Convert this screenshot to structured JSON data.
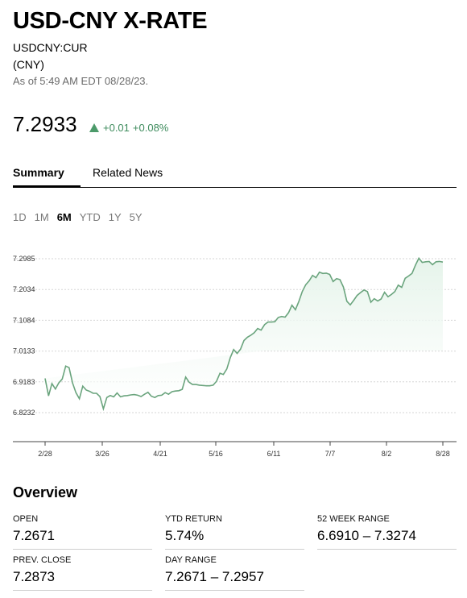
{
  "header": {
    "title": "USD-CNY X-RATE",
    "ticker": "USDCNY:CUR",
    "currency": "(CNY)",
    "as_of": "As of 5:49 AM EDT 08/28/23."
  },
  "quote": {
    "price": "7.2933",
    "change": "+0.01",
    "change_pct": "+0.08%",
    "up_color": "#4c9a6a"
  },
  "tabs": [
    {
      "label": "Summary",
      "active": true
    },
    {
      "label": "Related News",
      "active": false
    }
  ],
  "ranges": [
    {
      "label": "1D",
      "active": false
    },
    {
      "label": "1M",
      "active": false
    },
    {
      "label": "6M",
      "active": true
    },
    {
      "label": "YTD",
      "active": false
    },
    {
      "label": "1Y",
      "active": false
    },
    {
      "label": "5Y",
      "active": false
    }
  ],
  "chart_data": {
    "type": "area",
    "y_ticks": [
      "7.2985",
      "7.2034",
      "7.1084",
      "7.0133",
      "6.9183",
      "6.8232"
    ],
    "x_ticks": [
      "2/28",
      "3/26",
      "4/21",
      "5/16",
      "6/11",
      "7/7",
      "8/2",
      "8/28"
    ],
    "ylim": [
      6.8232,
      7.2985
    ],
    "grid": true,
    "line_color": "#6aa47d",
    "values": [
      6.929,
      6.875,
      6.913,
      6.896,
      6.915,
      6.927,
      6.967,
      6.962,
      6.915,
      6.885,
      6.866,
      6.905,
      6.893,
      6.889,
      6.883,
      6.883,
      6.873,
      6.835,
      6.87,
      6.876,
      6.872,
      6.884,
      6.872,
      6.875,
      6.876,
      6.878,
      6.879,
      6.877,
      6.873,
      6.88,
      6.886,
      6.874,
      6.87,
      6.876,
      6.877,
      6.885,
      6.88,
      6.888,
      6.89,
      6.891,
      6.895,
      6.933,
      6.917,
      6.91,
      6.91,
      6.908,
      6.907,
      6.906,
      6.906,
      6.908,
      6.92,
      6.945,
      6.941,
      6.958,
      6.993,
      7.018,
      7.006,
      7.019,
      7.046,
      7.056,
      7.062,
      7.07,
      7.083,
      7.078,
      7.095,
      7.103,
      7.103,
      7.104,
      7.117,
      7.12,
      7.118,
      7.132,
      7.155,
      7.141,
      7.166,
      7.197,
      7.218,
      7.23,
      7.247,
      7.24,
      7.257,
      7.253,
      7.254,
      7.25,
      7.228,
      7.237,
      7.234,
      7.211,
      7.167,
      7.156,
      7.17,
      7.185,
      7.194,
      7.202,
      7.197,
      7.164,
      7.175,
      7.168,
      7.174,
      7.195,
      7.181,
      7.188,
      7.197,
      7.217,
      7.21,
      7.238,
      7.245,
      7.253,
      7.278,
      7.3,
      7.287,
      7.289,
      7.29,
      7.28,
      7.289,
      7.29,
      7.288
    ]
  },
  "overview": {
    "title": "Overview",
    "stats": [
      {
        "label": "OPEN",
        "value": "7.2671"
      },
      {
        "label": "YTD RETURN",
        "value": "5.74%"
      },
      {
        "label": "52 WEEK RANGE",
        "value": "6.6910 – 7.3274"
      },
      {
        "label": "PREV. CLOSE",
        "value": "7.2873"
      },
      {
        "label": "DAY RANGE",
        "value": "7.2671 – 7.2957"
      }
    ]
  }
}
